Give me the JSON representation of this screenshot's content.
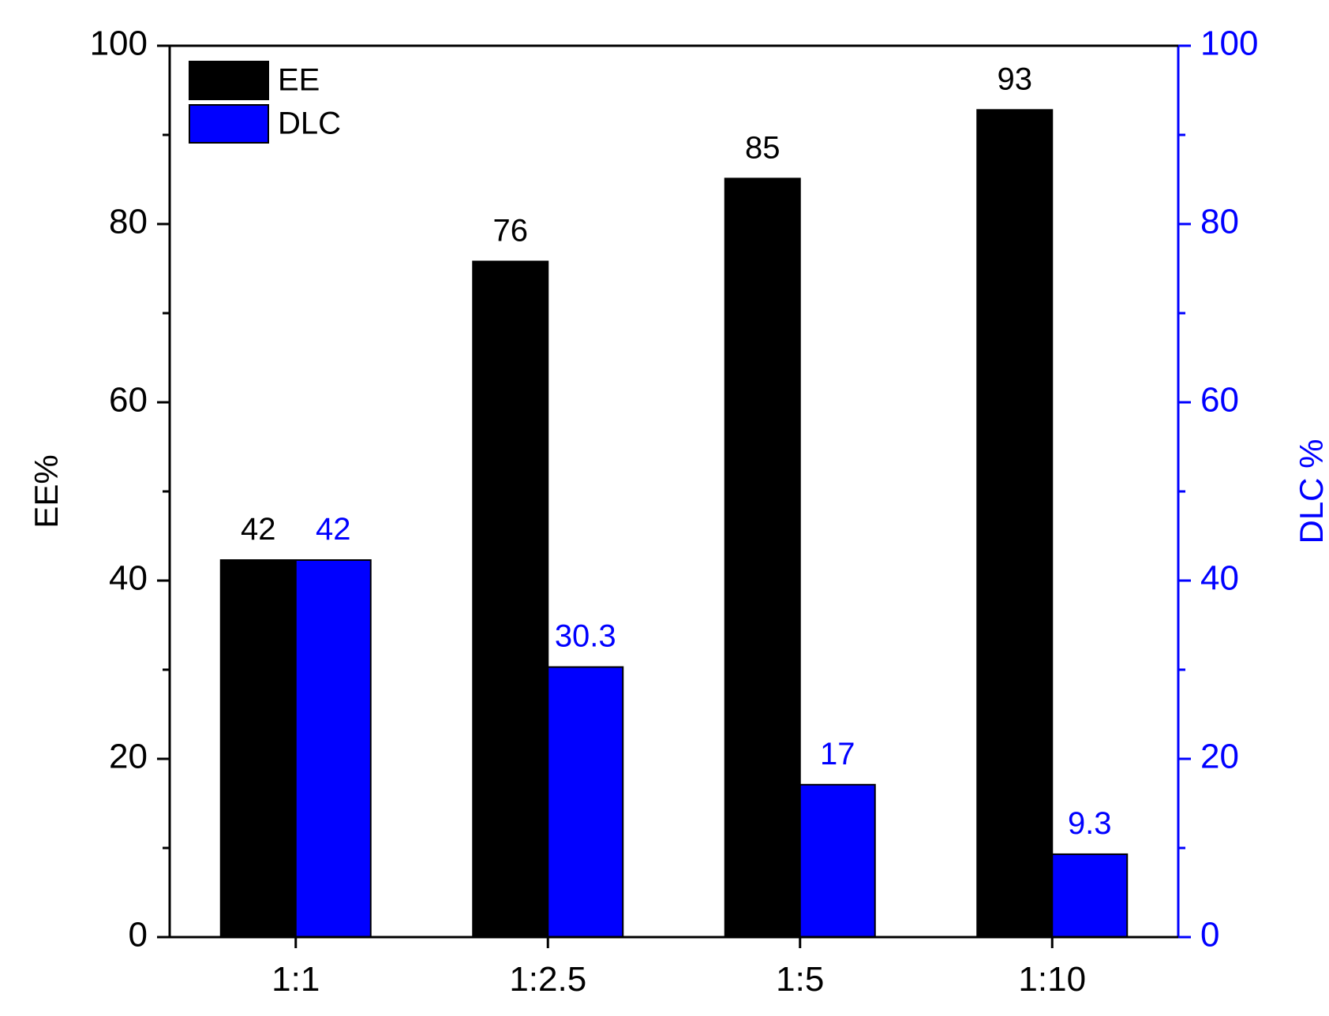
{
  "chart_data": {
    "type": "bar",
    "categories": [
      "1:1",
      "1:2.5",
      "1:5",
      "1:10"
    ],
    "series": [
      {
        "name": "EE",
        "axis": "left",
        "color": "#000000",
        "values": [
          42.3,
          75.8,
          85.1,
          92.8
        ],
        "labels": [
          "42",
          "76",
          "85",
          "93"
        ]
      },
      {
        "name": "DLC",
        "axis": "right",
        "color": "#0000ff",
        "values": [
          42.3,
          30.3,
          17.1,
          9.3
        ],
        "labels": [
          "42",
          "30.3",
          "17",
          "9.3"
        ]
      }
    ],
    "ylabel": "EE%",
    "y2label": "DLC %",
    "ylim": [
      0,
      100
    ],
    "y2lim": [
      0,
      100
    ],
    "yticks": [
      "0",
      "20",
      "40",
      "60",
      "80",
      "100"
    ],
    "y2ticks": [
      "0",
      "20",
      "40",
      "60",
      "80",
      "100"
    ],
    "legend_position": "top-left",
    "grid": false,
    "colors": {
      "left_axis": "#000000",
      "right_axis": "#0000ff"
    }
  }
}
